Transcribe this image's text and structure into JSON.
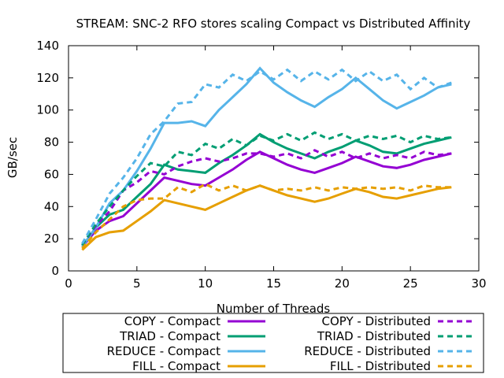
{
  "chart_data": {
    "type": "line",
    "title": "STREAM: SNC-2 RFO stores scaling Compact vs Distributed Affinity",
    "xlabel": "Number of Threads",
    "ylabel": "GB/sec",
    "xlim": [
      0,
      30
    ],
    "ylim": [
      0,
      140
    ],
    "xticks": [
      0,
      5,
      10,
      15,
      20,
      25,
      30
    ],
    "yticks": [
      0,
      20,
      40,
      60,
      80,
      100,
      120,
      140
    ],
    "grid": false,
    "legend_position": "bottom",
    "x": [
      1,
      2,
      3,
      4,
      5,
      6,
      7,
      8,
      9,
      10,
      11,
      12,
      13,
      14,
      15,
      16,
      17,
      18,
      19,
      20,
      21,
      22,
      23,
      24,
      25,
      26,
      27,
      28
    ],
    "series": [
      {
        "name": "COPY - Compact",
        "color": "#9400d3",
        "dash": false,
        "values": [
          15,
          25,
          31,
          34,
          42,
          50,
          58,
          56,
          54,
          53,
          58,
          63,
          69,
          74,
          70,
          66,
          63,
          61,
          64,
          67,
          71,
          68,
          65,
          64,
          66,
          69,
          71,
          73
        ]
      },
      {
        "name": "TRIAD - Compact",
        "color": "#009e73",
        "dash": false,
        "values": [
          15,
          27,
          35,
          38,
          46,
          54,
          66,
          63,
          62,
          61,
          67,
          72,
          78,
          85,
          80,
          76,
          73,
          70,
          74,
          77,
          81,
          78,
          74,
          73,
          76,
          79,
          81,
          83
        ]
      },
      {
        "name": "REDUCE - Compact",
        "color": "#56b4e9",
        "dash": false,
        "values": [
          15,
          27,
          42,
          50,
          62,
          76,
          92,
          92,
          93,
          90,
          100,
          108,
          116,
          126,
          117,
          111,
          106,
          102,
          108,
          113,
          120,
          113,
          106,
          101,
          105,
          109,
          114,
          116
        ]
      },
      {
        "name": "FILL - Compact",
        "color": "#e69f00",
        "dash": false,
        "values": [
          13,
          21,
          24,
          25,
          31,
          37,
          44,
          42,
          40,
          38,
          42,
          46,
          50,
          53,
          50,
          47,
          45,
          43,
          45,
          48,
          51,
          49,
          46,
          45,
          47,
          49,
          51,
          52
        ]
      },
      {
        "name": "COPY - Distributed",
        "color": "#9400d3",
        "dash": true,
        "values": [
          16,
          28,
          37,
          50,
          55,
          62,
          60,
          65,
          68,
          70,
          68,
          70,
          73,
          73,
          71,
          73,
          70,
          75,
          71,
          74,
          70,
          73,
          70,
          72,
          70,
          74,
          72,
          73
        ]
      },
      {
        "name": "TRIAD - Distributed",
        "color": "#009e73",
        "dash": true,
        "values": [
          16,
          29,
          40,
          50,
          59,
          67,
          65,
          74,
          72,
          79,
          76,
          82,
          78,
          84,
          81,
          85,
          81,
          86,
          82,
          85,
          81,
          84,
          82,
          84,
          80,
          84,
          82,
          83
        ]
      },
      {
        "name": "REDUCE - Distributed",
        "color": "#56b4e9",
        "dash": true,
        "values": [
          17,
          32,
          48,
          58,
          70,
          85,
          93,
          104,
          105,
          116,
          114,
          122,
          118,
          124,
          119,
          125,
          118,
          124,
          119,
          125,
          118,
          124,
          118,
          122,
          113,
          120,
          114,
          117
        ]
      },
      {
        "name": "FILL - Distributed",
        "color": "#e69f00",
        "dash": true,
        "values": [
          14,
          24,
          32,
          40,
          44,
          45,
          45,
          52,
          49,
          54,
          50,
          53,
          50,
          53,
          50,
          51,
          50,
          52,
          50,
          52,
          51,
          52,
          51,
          52,
          50,
          53,
          52,
          52
        ]
      }
    ]
  }
}
